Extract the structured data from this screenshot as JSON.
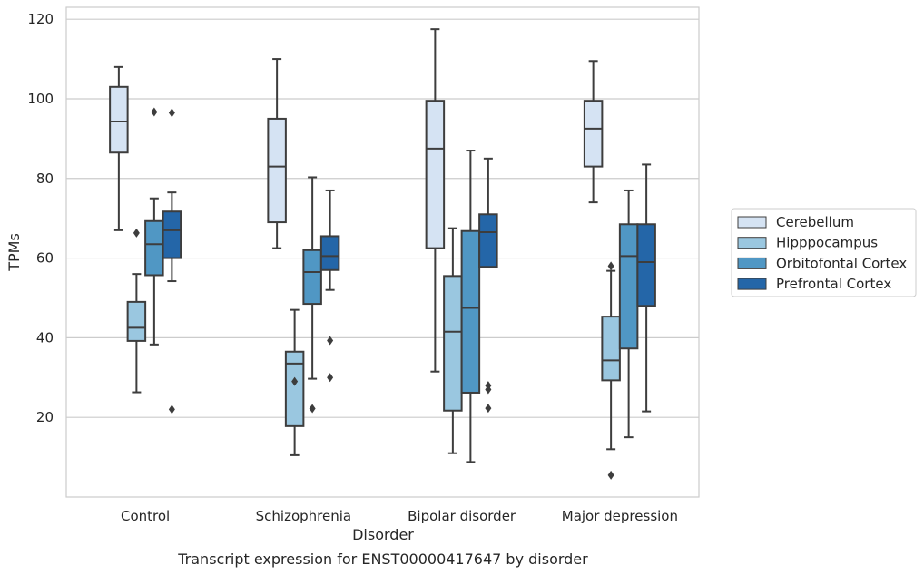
{
  "chart_data": {
    "type": "boxplot",
    "xlabel": "Disorder",
    "ylabel": "TPMs",
    "caption": "Transcript expression for ENST00000417647 by disorder",
    "ylim": [
      0,
      123
    ],
    "yticks": [
      20,
      40,
      60,
      80,
      100,
      120
    ],
    "grid": "horizontal",
    "legend_position": "right",
    "categories": [
      "Control",
      "Schizophrenia",
      "Bipolar disorder",
      "Major depression"
    ],
    "series": [
      {
        "name": "Cerebellum",
        "color": "#d5e3f3",
        "boxes": [
          {
            "whislo": 67,
            "q1": 86.5,
            "med": 94.3,
            "q3": 103,
            "whishi": 108,
            "fliers": []
          },
          {
            "whislo": 62.5,
            "q1": 69,
            "med": 83,
            "q3": 95,
            "whishi": 110,
            "fliers": []
          },
          {
            "whislo": 31.5,
            "q1": 62.5,
            "med": 87.5,
            "q3": 99.5,
            "whishi": 117.5,
            "fliers": []
          },
          {
            "whislo": 74,
            "q1": 83,
            "med": 92.5,
            "q3": 99.5,
            "whishi": 109.5,
            "fliers": []
          }
        ]
      },
      {
        "name": "Hipppocampus",
        "color": "#9ac7e0",
        "boxes": [
          {
            "whislo": 26.3,
            "q1": 39.2,
            "med": 42.5,
            "q3": 49,
            "whishi": 56,
            "fliers": [
              66.3
            ]
          },
          {
            "whislo": 10.5,
            "q1": 17.8,
            "med": 33.5,
            "q3": 36.5,
            "whishi": 47,
            "fliers": [
              29
            ]
          },
          {
            "whislo": 11,
            "q1": 21.7,
            "med": 41.5,
            "q3": 55.5,
            "whishi": 67.5,
            "fliers": []
          },
          {
            "whislo": 12,
            "q1": 29.3,
            "med": 34.3,
            "q3": 45.3,
            "whishi": 56.8,
            "fliers": [
              58,
              5.5
            ]
          }
        ]
      },
      {
        "name": "Orbitofontal Cortex",
        "color": "#5097c4",
        "boxes": [
          {
            "whislo": 38.3,
            "q1": 55.7,
            "med": 63.5,
            "q3": 69.3,
            "whishi": 75,
            "fliers": [
              96.7
            ]
          },
          {
            "whislo": 29.7,
            "q1": 48.5,
            "med": 56.5,
            "q3": 62,
            "whishi": 80.3,
            "fliers": [
              22.2
            ]
          },
          {
            "whislo": 8.8,
            "q1": 26.2,
            "med": 47.5,
            "q3": 66.8,
            "whishi": 87,
            "fliers": []
          },
          {
            "whislo": 15,
            "q1": 37.3,
            "med": 60.5,
            "q3": 68.5,
            "whishi": 77,
            "fliers": []
          }
        ]
      },
      {
        "name": "Prefrontal Cortex",
        "color": "#2466a8",
        "boxes": [
          {
            "whislo": 54.2,
            "q1": 60,
            "med": 67,
            "q3": 71.7,
            "whishi": 76.5,
            "fliers": [
              96.5,
              22
            ]
          },
          {
            "whislo": 52,
            "q1": 57,
            "med": 60.5,
            "q3": 65.5,
            "whishi": 77,
            "fliers": [
              39.3,
              30
            ]
          },
          {
            "whislo": 57.8,
            "q1": 57.8,
            "med": 66.5,
            "q3": 71,
            "whishi": 85,
            "fliers": [
              28,
              27,
              22.3
            ]
          },
          {
            "whislo": 21.5,
            "q1": 48,
            "med": 59,
            "q3": 68.5,
            "whishi": 83.5,
            "fliers": []
          }
        ]
      }
    ]
  }
}
